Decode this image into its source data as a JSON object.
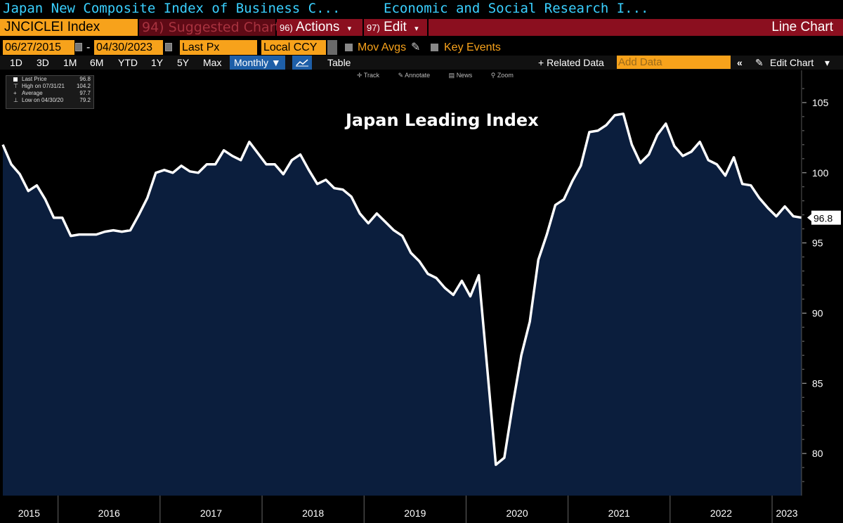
{
  "header": {
    "title_left": "Japan New Composite Index of Business C...",
    "title_right": "Economic and Social Research I..."
  },
  "command_bar": {
    "ticker": "JNCICLEI Index",
    "suggested_num": "94)",
    "suggested_label": "Suggested Charts",
    "actions_num": "96)",
    "actions_label": "Actions",
    "edit_num": "97)",
    "edit_label": "Edit",
    "chart_type": "Line Chart"
  },
  "params": {
    "start_date": "06/27/2015",
    "date_sep": "-",
    "end_date": "04/30/2023",
    "field": "Last Px",
    "currency": "Local CCY",
    "mov_avgs": "Mov Avgs",
    "key_events": "Key Events"
  },
  "periods": [
    "1D",
    "3D",
    "1M",
    "6M",
    "YTD",
    "1Y",
    "5Y",
    "Max"
  ],
  "frequency": "Monthly",
  "table_label": "Table",
  "related_data": "+ Related Data",
  "add_data_placeholder": "Add Data",
  "edit_chart": "Edit Chart",
  "legend": {
    "last_price_label": "Last Price",
    "last_price_value": "96.8",
    "high_label": "High on 07/31/21",
    "high_value": "104.2",
    "average_label": "Average",
    "average_value": "97.7",
    "low_label": "Low on 04/30/20",
    "low_value": "79.2"
  },
  "toolbar": {
    "track": "Track",
    "annotate": "Annotate",
    "news": "News",
    "zoom": "Zoom"
  },
  "colors": {
    "accent": "#f7a21b",
    "line": "#ffffff",
    "area": "#0b1e3d",
    "title": "#3ad0ff",
    "red": "#8b0f1f"
  },
  "chart_data": {
    "type": "area",
    "title": "Japan Leading Index",
    "last_value_label": "96.8",
    "ylim": [
      77,
      107
    ],
    "yticks": [
      80,
      85,
      90,
      95,
      100,
      105
    ],
    "ytick_labels": [
      "80",
      "85",
      "90",
      "95",
      "100",
      "105"
    ],
    "xtick_labels": [
      "2015",
      "2016",
      "2017",
      "2018",
      "2019",
      "2020",
      "2021",
      "2022",
      "2023"
    ],
    "year_boundaries": [
      "2016-01",
      "2017-01",
      "2018-01",
      "2019-01",
      "2020-01",
      "2021-01",
      "2022-01",
      "2023-01"
    ],
    "x_start": "2015-06",
    "series": [
      {
        "values": [
          {
            "x": "2015-06",
            "y": 102.0
          },
          {
            "x": "2015-07",
            "y": 100.6
          },
          {
            "x": "2015-08",
            "y": 99.9
          },
          {
            "x": "2015-09",
            "y": 98.7
          },
          {
            "x": "2015-10",
            "y": 99.1
          },
          {
            "x": "2015-11",
            "y": 98.1
          },
          {
            "x": "2015-12",
            "y": 96.8
          },
          {
            "x": "2016-01",
            "y": 96.8
          },
          {
            "x": "2016-02",
            "y": 95.5
          },
          {
            "x": "2016-03",
            "y": 95.6
          },
          {
            "x": "2016-04",
            "y": 95.6
          },
          {
            "x": "2016-05",
            "y": 95.6
          },
          {
            "x": "2016-06",
            "y": 95.8
          },
          {
            "x": "2016-07",
            "y": 95.9
          },
          {
            "x": "2016-08",
            "y": 95.8
          },
          {
            "x": "2016-09",
            "y": 95.9
          },
          {
            "x": "2016-10",
            "y": 97.0
          },
          {
            "x": "2016-11",
            "y": 98.2
          },
          {
            "x": "2016-12",
            "y": 100.0
          },
          {
            "x": "2017-01",
            "y": 100.2
          },
          {
            "x": "2017-02",
            "y": 100.0
          },
          {
            "x": "2017-03",
            "y": 100.5
          },
          {
            "x": "2017-04",
            "y": 100.1
          },
          {
            "x": "2017-05",
            "y": 100.0
          },
          {
            "x": "2017-06",
            "y": 100.6
          },
          {
            "x": "2017-07",
            "y": 100.6
          },
          {
            "x": "2017-08",
            "y": 101.6
          },
          {
            "x": "2017-09",
            "y": 101.2
          },
          {
            "x": "2017-10",
            "y": 100.9
          },
          {
            "x": "2017-11",
            "y": 102.2
          },
          {
            "x": "2017-12",
            "y": 101.4
          },
          {
            "x": "2018-01",
            "y": 100.6
          },
          {
            "x": "2018-02",
            "y": 100.6
          },
          {
            "x": "2018-03",
            "y": 99.9
          },
          {
            "x": "2018-04",
            "y": 100.9
          },
          {
            "x": "2018-05",
            "y": 101.3
          },
          {
            "x": "2018-06",
            "y": 100.2
          },
          {
            "x": "2018-07",
            "y": 99.2
          },
          {
            "x": "2018-08",
            "y": 99.5
          },
          {
            "x": "2018-09",
            "y": 98.9
          },
          {
            "x": "2018-10",
            "y": 98.8
          },
          {
            "x": "2018-11",
            "y": 98.3
          },
          {
            "x": "2018-12",
            "y": 97.1
          },
          {
            "x": "2019-01",
            "y": 96.4
          },
          {
            "x": "2019-02",
            "y": 97.1
          },
          {
            "x": "2019-03",
            "y": 96.5
          },
          {
            "x": "2019-04",
            "y": 95.9
          },
          {
            "x": "2019-05",
            "y": 95.5
          },
          {
            "x": "2019-06",
            "y": 94.3
          },
          {
            "x": "2019-07",
            "y": 93.7
          },
          {
            "x": "2019-08",
            "y": 92.8
          },
          {
            "x": "2019-09",
            "y": 92.5
          },
          {
            "x": "2019-10",
            "y": 91.8
          },
          {
            "x": "2019-11",
            "y": 91.3
          },
          {
            "x": "2019-12",
            "y": 92.3
          },
          {
            "x": "2020-01",
            "y": 91.2
          },
          {
            "x": "2020-02",
            "y": 92.7
          },
          {
            "x": "2020-03",
            "y": 86.0
          },
          {
            "x": "2020-04",
            "y": 79.2
          },
          {
            "x": "2020-05",
            "y": 79.7
          },
          {
            "x": "2020-06",
            "y": 83.5
          },
          {
            "x": "2020-07",
            "y": 87.0
          },
          {
            "x": "2020-08",
            "y": 89.4
          },
          {
            "x": "2020-09",
            "y": 93.8
          },
          {
            "x": "2020-10",
            "y": 95.6
          },
          {
            "x": "2020-11",
            "y": 97.7
          },
          {
            "x": "2020-12",
            "y": 98.1
          },
          {
            "x": "2021-01",
            "y": 99.4
          },
          {
            "x": "2021-02",
            "y": 100.5
          },
          {
            "x": "2021-03",
            "y": 102.9
          },
          {
            "x": "2021-04",
            "y": 103.0
          },
          {
            "x": "2021-05",
            "y": 103.4
          },
          {
            "x": "2021-06",
            "y": 104.1
          },
          {
            "x": "2021-07",
            "y": 104.2
          },
          {
            "x": "2021-08",
            "y": 102.0
          },
          {
            "x": "2021-09",
            "y": 100.7
          },
          {
            "x": "2021-10",
            "y": 101.3
          },
          {
            "x": "2021-11",
            "y": 102.7
          },
          {
            "x": "2021-12",
            "y": 103.5
          },
          {
            "x": "2022-01",
            "y": 101.9
          },
          {
            "x": "2022-02",
            "y": 101.2
          },
          {
            "x": "2022-03",
            "y": 101.5
          },
          {
            "x": "2022-04",
            "y": 102.2
          },
          {
            "x": "2022-05",
            "y": 100.9
          },
          {
            "x": "2022-06",
            "y": 100.6
          },
          {
            "x": "2022-07",
            "y": 99.8
          },
          {
            "x": "2022-08",
            "y": 101.1
          },
          {
            "x": "2022-09",
            "y": 99.2
          },
          {
            "x": "2022-10",
            "y": 99.1
          },
          {
            "x": "2022-11",
            "y": 98.2
          },
          {
            "x": "2022-12",
            "y": 97.5
          },
          {
            "x": "2023-01",
            "y": 96.9
          },
          {
            "x": "2023-02",
            "y": 97.6
          },
          {
            "x": "2023-03",
            "y": 96.9
          },
          {
            "x": "2023-04",
            "y": 96.8
          }
        ]
      }
    ]
  }
}
